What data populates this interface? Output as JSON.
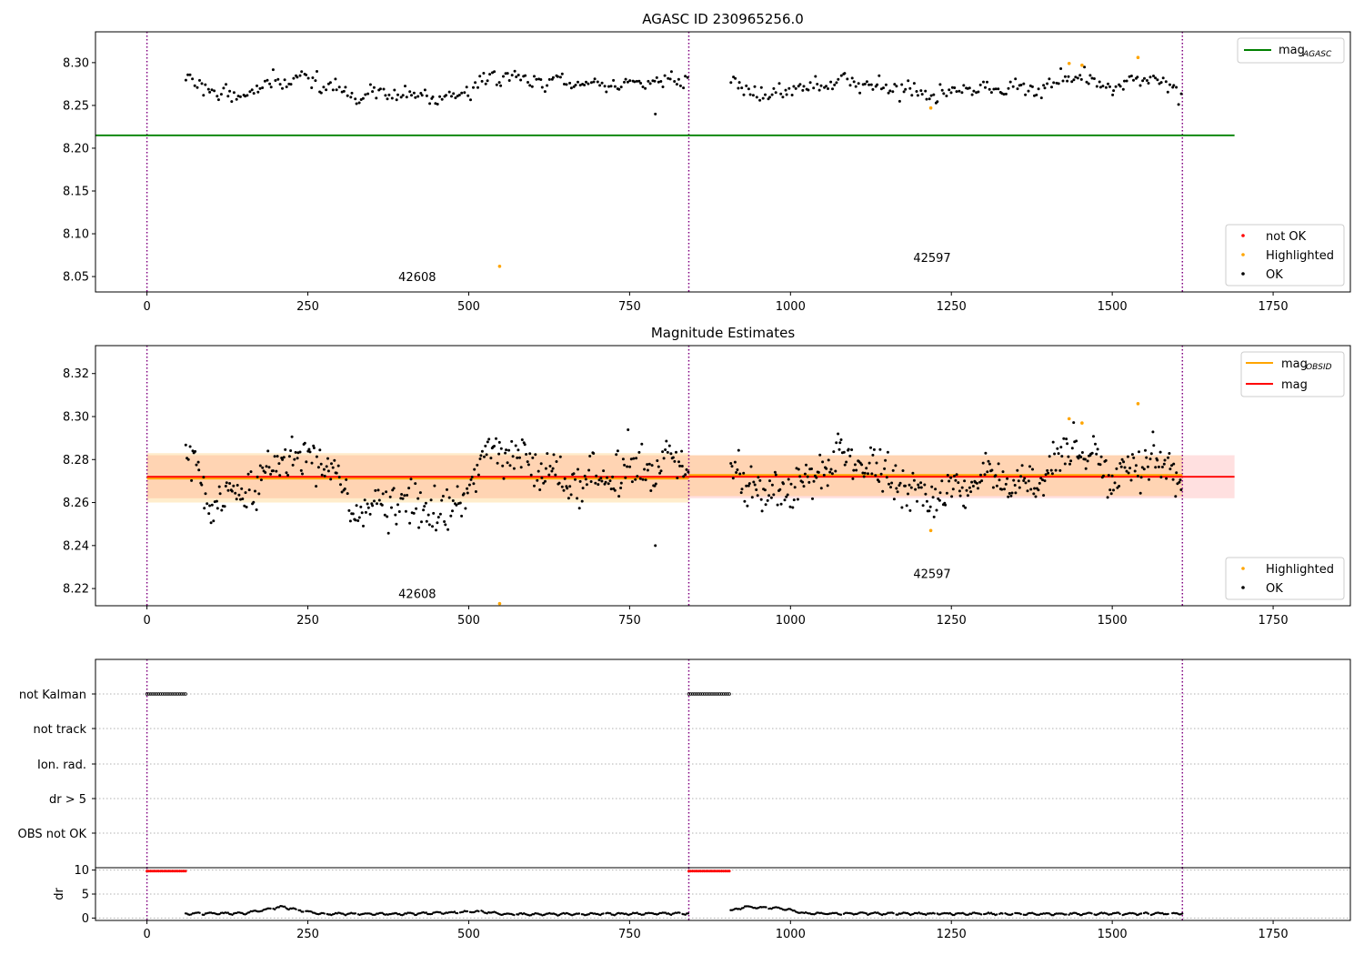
{
  "colors": {
    "ok": "#000000",
    "highlighted": "#ffa500",
    "not_ok": "#ff0000",
    "mag_agasc": "#008000",
    "mag_obsid": "#ffa500",
    "mag": "#ff0000",
    "obs_boundary": "#800080",
    "band_obsid": "#ffa500",
    "band_mag": "#ff0000",
    "flag_grid": "#b0b0b0"
  },
  "chart_data": [
    {
      "type": "scatter",
      "title": "AGASC ID 230965256.0",
      "xlim": [
        -80,
        1870
      ],
      "ylim": [
        8.032,
        8.336
      ],
      "xticks": [
        0,
        250,
        500,
        750,
        1000,
        1250,
        1500,
        1750
      ],
      "yticks": [
        8.05,
        8.1,
        8.15,
        8.2,
        8.25,
        8.3
      ],
      "ytick_labels": [
        "8.05",
        "8.10",
        "8.15",
        "8.20",
        "8.25",
        "8.30"
      ],
      "grid": false,
      "line_legend": {
        "placement": "top-right",
        "entries": [
          {
            "label": "mag",
            "sub": "AGASC",
            "color": "#008000"
          }
        ]
      },
      "point_legend": {
        "placement": "bottom-right",
        "entries": [
          {
            "label": "not OK",
            "color": "#ff0000"
          },
          {
            "label": "Highlighted",
            "color": "#ffa500"
          },
          {
            "label": "OK",
            "color": "#000000"
          }
        ]
      },
      "hlines": [
        {
          "name": "mag_AGASC",
          "y": 8.215,
          "x": [
            -80,
            1690
          ],
          "color": "#008000"
        }
      ],
      "obs_boundaries": [
        0,
        842,
        1609
      ],
      "obs_labels": [
        {
          "text": "42608",
          "x": 420,
          "y": 8.045
        },
        {
          "text": "42597",
          "x": 1220,
          "y": 8.067
        }
      ],
      "segments": [
        {
          "x0": 60,
          "x1": 842,
          "n": 230,
          "seed": 11,
          "noise": 0.0085,
          "profile": [
            [
              60,
              8.283
            ],
            [
              110,
              8.262
            ],
            [
              160,
              8.266
            ],
            [
              240,
              8.285
            ],
            [
              320,
              8.262
            ],
            [
              400,
              8.262
            ],
            [
              470,
              8.258
            ],
            [
              540,
              8.284
            ],
            [
              620,
              8.278
            ],
            [
              700,
              8.274
            ],
            [
              780,
              8.277
            ],
            [
              842,
              8.283
            ]
          ]
        },
        {
          "x0": 907,
          "x1": 1609,
          "n": 210,
          "seed": 23,
          "noise": 0.0085,
          "profile": [
            [
              907,
              8.28
            ],
            [
              960,
              8.264
            ],
            [
              1010,
              8.268
            ],
            [
              1080,
              8.282
            ],
            [
              1150,
              8.27
            ],
            [
              1220,
              8.262
            ],
            [
              1300,
              8.271
            ],
            [
              1380,
              8.269
            ],
            [
              1450,
              8.286
            ],
            [
              1500,
              8.272
            ],
            [
              1560,
              8.284
            ],
            [
              1609,
              8.266
            ]
          ]
        }
      ],
      "outliers": [
        {
          "x": 790,
          "y": 8.24
        }
      ],
      "highlighted": [
        {
          "x": 548,
          "y": 8.062
        },
        {
          "x": 1218,
          "y": 8.247
        },
        {
          "x": 1433,
          "y": 8.299
        },
        {
          "x": 1453,
          "y": 8.297
        },
        {
          "x": 1540,
          "y": 8.306
        }
      ]
    },
    {
      "type": "scatter",
      "title": "Magnitude Estimates",
      "xlim": [
        -80,
        1870
      ],
      "ylim": [
        8.212,
        8.333
      ],
      "xticks": [
        0,
        250,
        500,
        750,
        1000,
        1250,
        1500,
        1750
      ],
      "yticks": [
        8.22,
        8.24,
        8.26,
        8.28,
        8.3,
        8.32
      ],
      "ytick_labels": [
        "8.22",
        "8.24",
        "8.26",
        "8.28",
        "8.30",
        "8.32"
      ],
      "grid": false,
      "line_legend": {
        "placement": "top-right",
        "entries": [
          {
            "label": "mag",
            "sub": "OBSID",
            "color": "#ffa500"
          },
          {
            "label": "mag",
            "sub": "",
            "color": "#ff0000"
          }
        ]
      },
      "point_legend": {
        "placement": "bottom-right",
        "entries": [
          {
            "label": "Highlighted",
            "color": "#ffa500"
          },
          {
            "label": "OK",
            "color": "#000000"
          }
        ]
      },
      "hlines": [
        {
          "name": "mag",
          "y": 8.272,
          "x": [
            0,
            1690
          ],
          "color": "#ff0000"
        },
        {
          "name": "mag_OBSID_42608",
          "y": 8.2712,
          "x": [
            0,
            842
          ],
          "color": "#ffa500"
        },
        {
          "name": "mag_OBSID_42597",
          "y": 8.2728,
          "x": [
            842,
            1609
          ],
          "color": "#ffa500"
        }
      ],
      "bands": [
        {
          "name": "mag_band",
          "y0": 8.262,
          "y1": 8.282,
          "x": [
            0,
            1690
          ],
          "color": "#ff0000",
          "opacity": 0.12
        },
        {
          "name": "obsid_band_42608",
          "y0": 8.26,
          "y1": 8.283,
          "x": [
            0,
            842
          ],
          "color": "#ffa500",
          "opacity": 0.2
        },
        {
          "name": "obsid_band_42597",
          "y0": 8.263,
          "y1": 8.282,
          "x": [
            842,
            1609
          ],
          "color": "#ffa500",
          "opacity": 0.2
        }
      ],
      "obs_boundaries": [
        0,
        842,
        1609
      ],
      "obs_labels": [
        {
          "text": "42608",
          "x": 420,
          "y": 8.2155
        },
        {
          "text": "42597",
          "x": 1220,
          "y": 8.225
        }
      ],
      "segments": [
        {
          "x0": 60,
          "x1": 842,
          "n": 380,
          "seed": 37,
          "noise": 0.009,
          "profile": [
            [
              60,
              8.283
            ],
            [
              100,
              8.258
            ],
            [
              150,
              8.262
            ],
            [
              220,
              8.283
            ],
            [
              270,
              8.282
            ],
            [
              320,
              8.256
            ],
            [
              400,
              8.26
            ],
            [
              470,
              8.252
            ],
            [
              530,
              8.285
            ],
            [
              600,
              8.277
            ],
            [
              680,
              8.268
            ],
            [
              750,
              8.276
            ],
            [
              842,
              8.279
            ]
          ]
        },
        {
          "x0": 907,
          "x1": 1609,
          "n": 360,
          "seed": 41,
          "noise": 0.009,
          "profile": [
            [
              907,
              8.275
            ],
            [
              960,
              8.262
            ],
            [
              1020,
              8.269
            ],
            [
              1080,
              8.283
            ],
            [
              1150,
              8.271
            ],
            [
              1220,
              8.262
            ],
            [
              1300,
              8.27
            ],
            [
              1380,
              8.268
            ],
            [
              1440,
              8.287
            ],
            [
              1500,
              8.27
            ],
            [
              1560,
              8.283
            ],
            [
              1609,
              8.266
            ]
          ]
        }
      ],
      "outliers": [
        {
          "x": 790,
          "y": 8.24
        }
      ],
      "highlighted": [
        {
          "x": 548,
          "y": 8.213
        },
        {
          "x": 1218,
          "y": 8.247
        },
        {
          "x": 1433,
          "y": 8.299
        },
        {
          "x": 1453,
          "y": 8.297
        },
        {
          "x": 1540,
          "y": 8.306
        }
      ]
    },
    {
      "type": "scatter",
      "title": "",
      "xlim": [
        -80,
        1870
      ],
      "categories": [
        "not Kalman",
        "not track",
        "Ion. rad.",
        "dr > 5",
        "OBS not OK"
      ],
      "grid": true,
      "obs_boundaries": [
        0,
        842,
        1609
      ],
      "flag_points": [
        {
          "category": "not Kalman",
          "x_ranges": [
            [
              0,
              60
            ],
            [
              842,
              907
            ]
          ]
        }
      ]
    },
    {
      "type": "scatter",
      "title": "",
      "xlim": [
        -80,
        1870
      ],
      "ylim": [
        -0.5,
        10.5
      ],
      "ylabel": "dr",
      "yticks": [
        0,
        5,
        10
      ],
      "ytick_labels": [
        "0",
        "5",
        "10"
      ],
      "xticks": [
        0,
        250,
        500,
        750,
        1000,
        1250,
        1500,
        1750
      ],
      "grid": true,
      "obs_boundaries": [
        0,
        842,
        1609
      ],
      "clipped": {
        "y": 9.8,
        "color": "#ff0000",
        "x_ranges": [
          [
            0,
            60
          ],
          [
            842,
            907
          ]
        ]
      },
      "profile": [
        [
          60,
          0.6
        ],
        [
          150,
          0.6
        ],
        [
          180,
          1.3
        ],
        [
          210,
          2.0
        ],
        [
          240,
          1.2
        ],
        [
          270,
          0.5
        ],
        [
          400,
          0.5
        ],
        [
          430,
          0.6
        ],
        [
          520,
          1.0
        ],
        [
          560,
          0.4
        ],
        [
          842,
          0.6
        ],
        [
          907,
          1.2
        ],
        [
          930,
          2.0
        ],
        [
          990,
          1.6
        ],
        [
          1020,
          0.6
        ],
        [
          1400,
          0.5
        ],
        [
          1609,
          0.6
        ]
      ]
    }
  ]
}
